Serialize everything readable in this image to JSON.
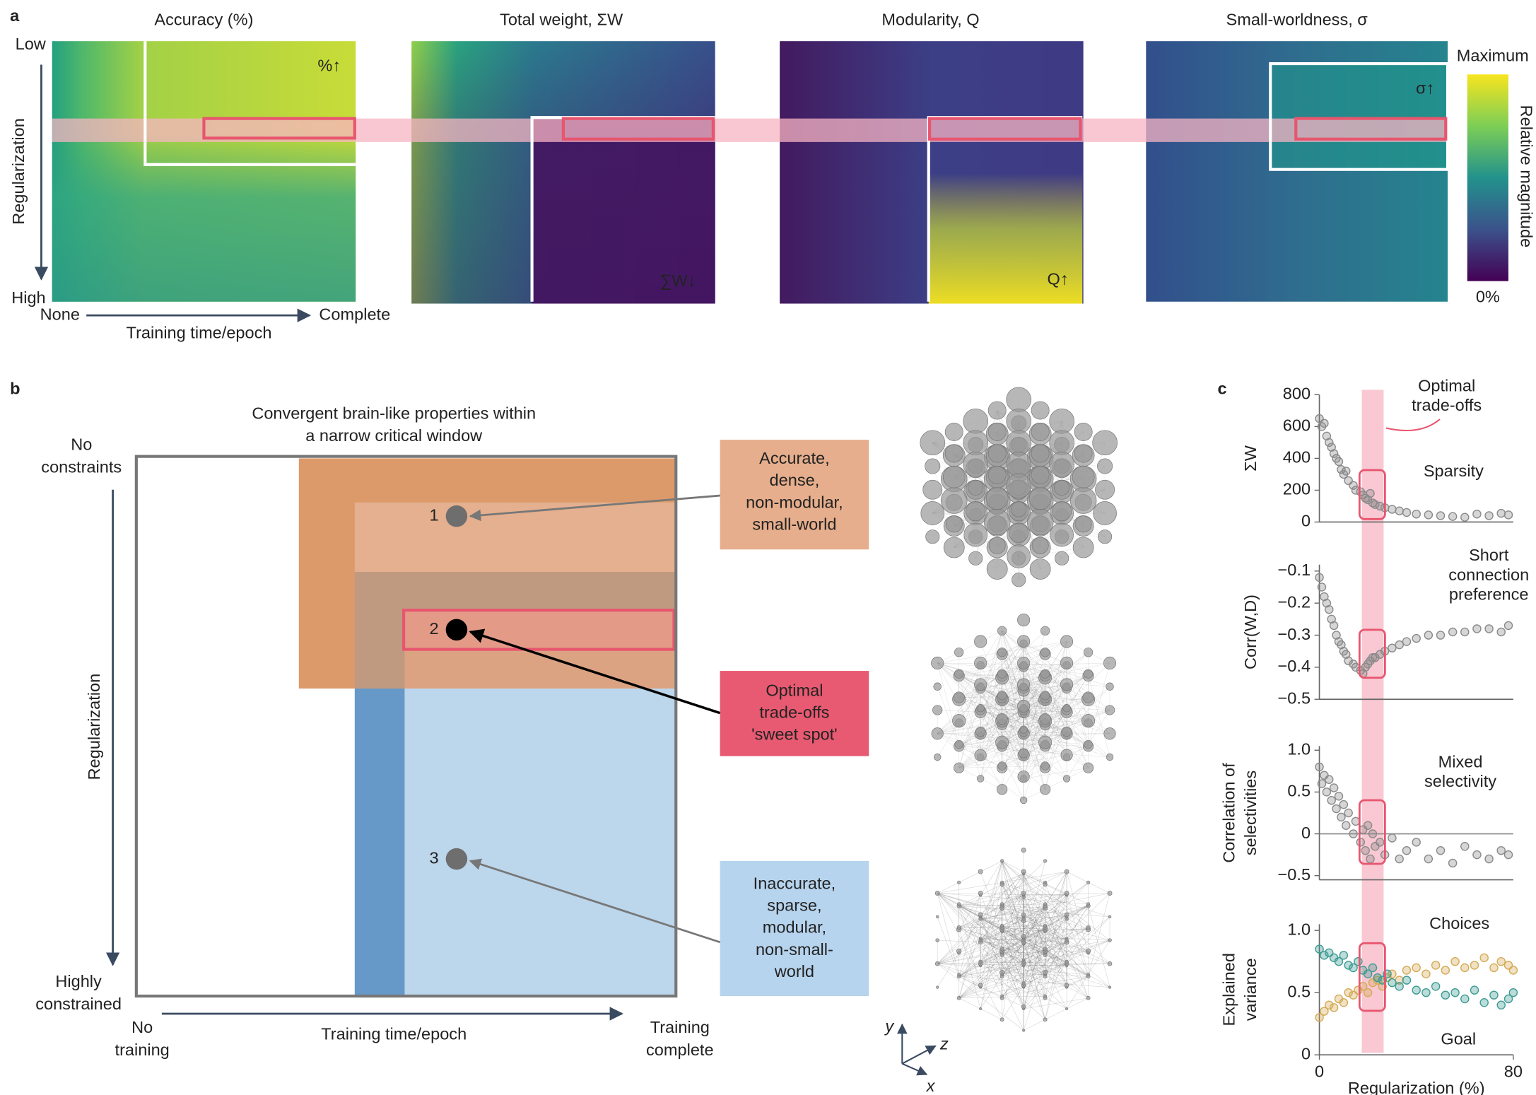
{
  "panel_labels": [
    "a",
    "b",
    "c"
  ],
  "panel_a": {
    "titles": [
      "Accuracy (%)",
      "Total weight, ΣW",
      "Modularity, Q",
      "Small-worldness, σ"
    ],
    "annotations": [
      "%↑",
      "∑W↓",
      "Q↑",
      "σ↑"
    ],
    "y_axis": {
      "label": "Regularization",
      "top": "Low",
      "bottom": "High"
    },
    "x_axis": {
      "label": "Training time/epoch",
      "left": "None",
      "right": "Complete"
    },
    "colorbar": {
      "top": "Maximum",
      "bottom": "0%",
      "label": "Relative magnitude"
    }
  },
  "panel_b": {
    "title": [
      "Convergent brain-like properties within",
      "a narrow critical window"
    ],
    "y_axis": {
      "label": "Regularization",
      "top": [
        "No",
        "constraints"
      ],
      "bottom": [
        "Highly",
        "constrained"
      ]
    },
    "x_axis": {
      "label": "Training time/epoch",
      "left": [
        "No",
        "training"
      ],
      "right": [
        "Training",
        "complete"
      ]
    },
    "points": [
      "1",
      "2",
      "3"
    ],
    "boxes": [
      [
        "Accurate,",
        "dense,",
        "non-modular,",
        "small-world"
      ],
      [
        "Optimal",
        "trade-offs",
        "'sweet spot'"
      ],
      [
        "Inaccurate,",
        "sparse,",
        "modular,",
        "non-small-",
        "world"
      ]
    ],
    "axes_3d": [
      "y",
      "z",
      "x"
    ]
  },
  "chart_data": [
    {
      "type": "scatter",
      "ylabel": "ΣW",
      "ylim": [
        0,
        800
      ],
      "yticks": [
        0,
        200,
        400,
        600,
        800
      ],
      "xlim": [
        0,
        80
      ],
      "color": "#8a8a8a",
      "annotation": "Sparsity",
      "highlight": [
        17.5,
        26.5
      ],
      "highlight_label": [
        "Optimal",
        "trade-offs"
      ],
      "x": [
        0,
        1,
        2,
        3,
        4,
        5,
        6,
        7,
        8,
        9,
        10,
        11,
        12,
        14,
        15,
        17,
        18,
        19,
        20,
        21,
        22,
        23,
        25,
        27,
        30,
        33,
        36,
        40,
        45,
        50,
        55,
        60,
        65,
        70,
        75,
        78
      ],
      "values": [
        650,
        600,
        620,
        540,
        500,
        470,
        430,
        400,
        380,
        330,
        300,
        320,
        260,
        230,
        200,
        190,
        170,
        150,
        140,
        180,
        120,
        110,
        100,
        90,
        80,
        70,
        60,
        50,
        45,
        40,
        35,
        30,
        50,
        40,
        55,
        45
      ]
    },
    {
      "type": "scatter",
      "ylabel": "Corr(W,D)",
      "ylim": [
        -0.5,
        -0.08
      ],
      "yticks": [
        {
          "value": -0.5,
          "label": "−0.5"
        },
        {
          "value": -0.4,
          "label": "−0.4"
        },
        {
          "value": -0.3,
          "label": "−0.3"
        },
        {
          "value": -0.2,
          "label": "−0.2"
        },
        {
          "value": -0.1,
          "label": "−0.1"
        }
      ],
      "xlim": [
        0,
        80
      ],
      "color": "#8a8a8a",
      "annotation": [
        "Short",
        "connection",
        "preference"
      ],
      "x": [
        0,
        1,
        2,
        3,
        4,
        5,
        6,
        7,
        8,
        9,
        10,
        11,
        12,
        14,
        15,
        17,
        18,
        19,
        20,
        21,
        22,
        23,
        25,
        27,
        30,
        33,
        36,
        40,
        45,
        50,
        55,
        60,
        65,
        70,
        75,
        78
      ],
      "values": [
        -0.12,
        -0.15,
        -0.18,
        -0.2,
        -0.22,
        -0.25,
        -0.27,
        -0.3,
        -0.32,
        -0.33,
        -0.35,
        -0.36,
        -0.38,
        -0.39,
        -0.4,
        -0.41,
        -0.42,
        -0.4,
        -0.39,
        -0.38,
        -0.37,
        -0.37,
        -0.36,
        -0.35,
        -0.34,
        -0.33,
        -0.32,
        -0.31,
        -0.3,
        -0.3,
        -0.29,
        -0.29,
        -0.28,
        -0.28,
        -0.29,
        -0.27
      ]
    },
    {
      "type": "scatter",
      "ylabel": [
        "Correlation of",
        "selectivities"
      ],
      "ylim": [
        -0.55,
        1.05
      ],
      "yticks": [
        {
          "value": -0.5,
          "label": "−0.5"
        },
        0,
        0.5,
        {
          "value": 1,
          "label": "1.0"
        }
      ],
      "xlim": [
        0,
        80
      ],
      "color": "#8a8a8a",
      "zero_line": true,
      "annotation": [
        "Mixed",
        "selectivity"
      ],
      "x": [
        0,
        1,
        2,
        3,
        4,
        5,
        6,
        7,
        8,
        9,
        10,
        11,
        12,
        14,
        15,
        17,
        18,
        19,
        20,
        21,
        22,
        23,
        25,
        27,
        30,
        33,
        36,
        40,
        45,
        50,
        55,
        60,
        65,
        70,
        75,
        78
      ],
      "values": [
        0.8,
        0.6,
        0.7,
        0.5,
        0.65,
        0.4,
        0.55,
        0.3,
        0.45,
        0.2,
        0.35,
        0.1,
        0.25,
        0,
        0.15,
        -0.1,
        0.05,
        -0.2,
        0.1,
        -0.3,
        0,
        -0.15,
        -0.1,
        -0.25,
        -0.05,
        -0.3,
        -0.2,
        -0.1,
        -0.3,
        -0.2,
        -0.35,
        -0.15,
        -0.25,
        -0.3,
        -0.2,
        -0.25
      ]
    },
    {
      "type": "scatter",
      "ylabel": [
        "Explained",
        "variance"
      ],
      "ylim": [
        0,
        1.05
      ],
      "yticks": [
        0,
        0.5,
        {
          "value": 1,
          "label": "1.0"
        }
      ],
      "xlim": [
        0,
        80
      ],
      "xticks": [
        0,
        80
      ],
      "xlabel": "Regularization (%)",
      "x": [
        0,
        2,
        4,
        6,
        8,
        10,
        12,
        14,
        16,
        18,
        20,
        22,
        24,
        26,
        28,
        30,
        33,
        36,
        40,
        44,
        48,
        52,
        56,
        60,
        64,
        68,
        72,
        75,
        78,
        80
      ],
      "series": [
        {
          "name": "Choices",
          "color": "#d4aa55",
          "values": [
            0.3,
            0.35,
            0.4,
            0.38,
            0.45,
            0.42,
            0.5,
            0.48,
            0.52,
            0.55,
            0.5,
            0.58,
            0.6,
            0.55,
            0.62,
            0.65,
            0.6,
            0.68,
            0.7,
            0.65,
            0.72,
            0.68,
            0.75,
            0.7,
            0.72,
            0.78,
            0.7,
            0.75,
            0.72,
            0.68
          ]
        },
        {
          "name": "Goal",
          "color": "#3d9b93",
          "values": [
            0.85,
            0.8,
            0.82,
            0.78,
            0.75,
            0.8,
            0.72,
            0.7,
            0.75,
            0.68,
            0.65,
            0.7,
            0.62,
            0.6,
            0.65,
            0.58,
            0.55,
            0.6,
            0.52,
            0.5,
            0.55,
            0.48,
            0.5,
            0.45,
            0.52,
            0.42,
            0.48,
            0.4,
            0.45,
            0.5
          ]
        }
      ]
    }
  ]
}
